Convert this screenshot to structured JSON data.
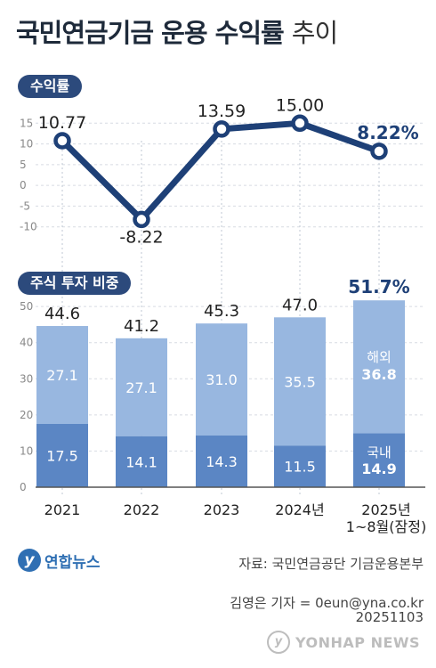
{
  "title": {
    "main": "국민연금기금 운용 수익률",
    "light": "추이"
  },
  "section1_label": "수익률",
  "section2_label": "주식 투자 비중",
  "chart_data": [
    {
      "type": "line",
      "x": [
        "2021",
        "2022",
        "2023",
        "2024년",
        "2025년 1~8월(잠정)"
      ],
      "values": [
        10.77,
        -8.22,
        13.59,
        15.0,
        8.22
      ],
      "value_labels": [
        "10.77",
        "-8.22",
        "13.59",
        "15.00",
        "8.22%"
      ],
      "yticks": [
        "15",
        "10",
        "5",
        "0",
        "-5",
        "-10"
      ],
      "ylim": [
        -12,
        17
      ],
      "color": "#1e4077"
    },
    {
      "type": "bar",
      "categories": [
        "2021",
        "2022",
        "2023",
        "2024년",
        "2025년 1~8월(잠정)"
      ],
      "category_lines": [
        [
          "2021"
        ],
        [
          "2022"
        ],
        [
          "2023"
        ],
        [
          "2024년"
        ],
        [
          "2025년",
          "1~8월(잠정)"
        ]
      ],
      "series": [
        {
          "name": "국내",
          "values": [
            17.5,
            14.1,
            14.3,
            11.5,
            14.9
          ],
          "labels": [
            "17.5",
            "14.1",
            "14.3",
            "11.5",
            "14.9"
          ]
        },
        {
          "name": "해외",
          "values": [
            27.1,
            27.1,
            31.0,
            35.5,
            36.8
          ],
          "labels": [
            "27.1",
            "27.1",
            "31.0",
            "35.5",
            "36.8"
          ]
        }
      ],
      "totals": [
        44.6,
        41.2,
        45.3,
        47.0,
        51.7
      ],
      "total_labels": [
        "44.6",
        "41.2",
        "45.3",
        "47.0",
        "51.7%"
      ],
      "yticks": [
        "50",
        "40",
        "30",
        "20",
        "10",
        "0"
      ],
      "ylim": [
        0,
        52
      ],
      "colors": {
        "domestic": "#5b86c4",
        "overseas": "#98b7e0"
      }
    }
  ],
  "footer": {
    "logo_text": "연합뉴스",
    "logo_mark": "y",
    "source": "자료: 국민연금공단 기금운용본부",
    "reporter": "김영은 기자 = 0eun@yna.co.kr",
    "date": "20251103",
    "watermark": "YONHAP NEWS"
  }
}
